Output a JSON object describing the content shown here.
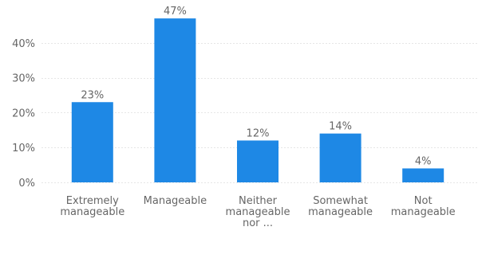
{
  "chart_data": {
    "type": "bar",
    "categories": [
      [
        "Extremely",
        "manageable"
      ],
      [
        "Manageable"
      ],
      [
        "Neither",
        "manageable",
        "nor ..."
      ],
      [
        "Somewhat",
        "manageable"
      ],
      [
        "Not",
        "manageable"
      ]
    ],
    "values": [
      23,
      47,
      12,
      14,
      4
    ],
    "data_labels": [
      "23%",
      "47%",
      "12%",
      "14%",
      "4%"
    ],
    "ylim": [
      0,
      50
    ],
    "yticks": [
      0,
      10,
      20,
      30,
      40
    ],
    "ytick_labels": [
      "0%",
      "10%",
      "20%",
      "30%",
      "40%"
    ],
    "grid": true,
    "legend": "none",
    "bar_color": "#1e88e5",
    "grid_color": "#e6e6e6",
    "text_color": "#666666"
  }
}
